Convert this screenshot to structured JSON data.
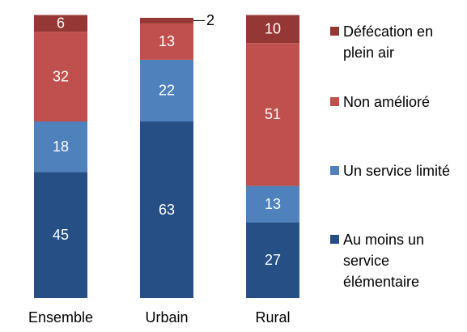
{
  "chart_data": {
    "type": "stacked_bar",
    "categories": [
      "Ensemble",
      "Urbain",
      "Rural"
    ],
    "series": [
      {
        "name": "Au moins un service élémentaire",
        "color": "#254f85",
        "values": [
          45,
          63,
          27
        ]
      },
      {
        "name": "Un service limité",
        "color": "#4f81bd",
        "values": [
          18,
          22,
          13
        ]
      },
      {
        "name": "Non amélioré",
        "color": "#c0504d",
        "values": [
          32,
          13,
          51
        ]
      },
      {
        "name": "Défécation en plein air",
        "color": "#953735",
        "values": [
          6,
          2,
          10
        ]
      }
    ]
  }
}
